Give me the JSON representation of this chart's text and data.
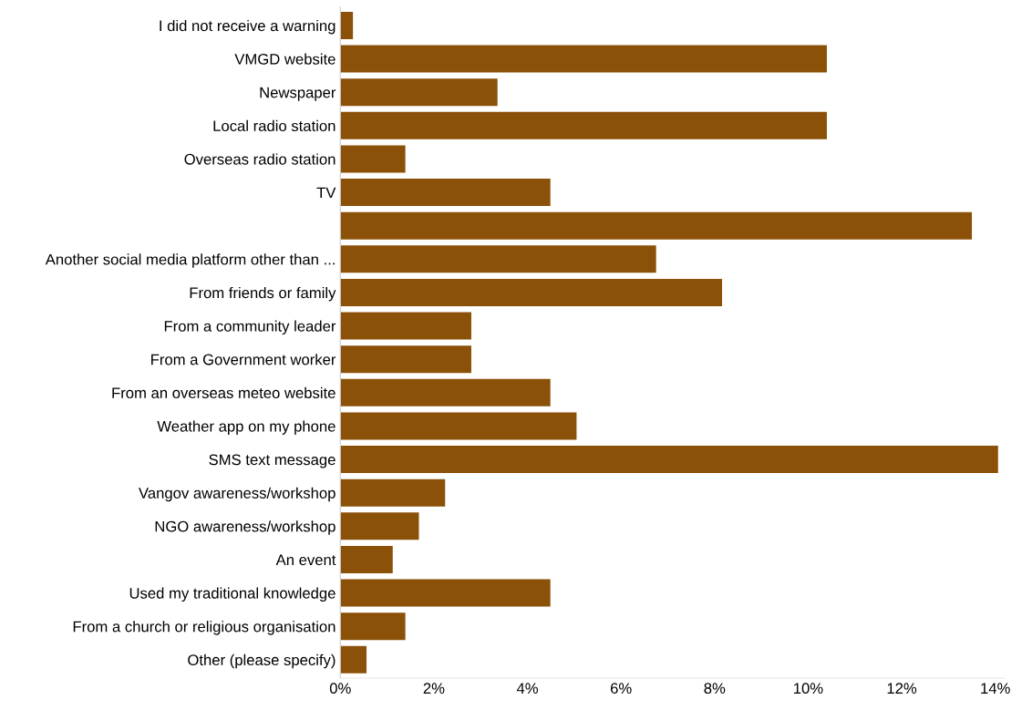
{
  "chart_data": {
    "type": "bar",
    "orientation": "horizontal",
    "categories": [
      "I did not receive a warning",
      "VMGD website",
      "Newspaper",
      "Local radio station",
      "Overseas radio station",
      "TV",
      null,
      "Another social media platform other than ...",
      "From friends or family",
      "From a community leader",
      "From a Government worker",
      "From an overseas meteo website",
      "Weather app on my phone",
      "SMS text message",
      "Vangov awareness/workshop",
      "NGO awareness/workshop",
      "An event",
      "Used my traditional knowledge",
      "From a church or religious organisation",
      "Other (please specify)"
    ],
    "values": [
      0.27,
      10.4,
      3.36,
      10.4,
      1.39,
      4.49,
      13.5,
      6.75,
      8.16,
      2.8,
      2.8,
      4.49,
      5.05,
      14.06,
      2.24,
      1.68,
      1.12,
      4.49,
      1.39,
      0.56
    ],
    "color": "#8b5109",
    "xlim": [
      0,
      14.2
    ],
    "xticks": [
      {
        "value": 0,
        "label": "0%"
      },
      {
        "value": 2,
        "label": "2%"
      },
      {
        "value": 4,
        "label": "4%"
      },
      {
        "value": 6,
        "label": "6%"
      },
      {
        "value": 8,
        "label": "8%"
      },
      {
        "value": 10,
        "label": "10%"
      },
      {
        "value": 12,
        "label": "12%"
      },
      {
        "value": 14,
        "label": "14%"
      }
    ],
    "grid": false,
    "legend": false
  }
}
